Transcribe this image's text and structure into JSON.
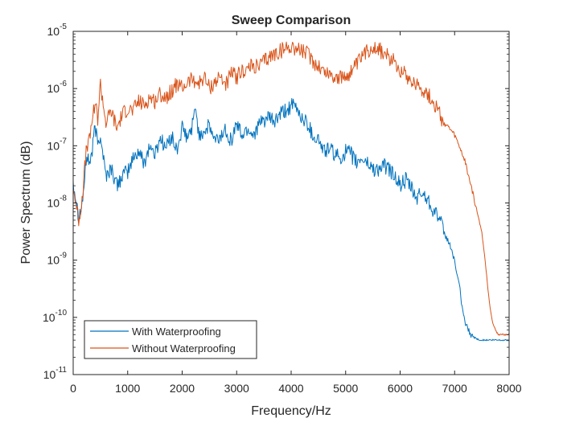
{
  "chart_data": {
    "type": "line",
    "title": "Sweep Comparison",
    "xlabel": "Frequency/Hz",
    "ylabel": "Power Spectrum (dB)",
    "xlim": [
      0,
      8000
    ],
    "ylim": [
      1e-11,
      1e-05
    ],
    "yscale": "log",
    "grid": false,
    "legend_position": "bottom-left",
    "x_ticks": [
      0,
      1000,
      2000,
      3000,
      4000,
      5000,
      6000,
      7000,
      8000
    ],
    "x_tick_labels": [
      "0",
      "1000",
      "2000",
      "3000",
      "4000",
      "5000",
      "6000",
      "7000",
      "8000"
    ],
    "y_ticks": [
      1e-11,
      1e-10,
      1e-09,
      1e-08,
      1e-07,
      1e-06,
      1e-05
    ],
    "y_tick_labels": [
      {
        "base": "10",
        "exp": "-11"
      },
      {
        "base": "10",
        "exp": "-10"
      },
      {
        "base": "10",
        "exp": "-9"
      },
      {
        "base": "10",
        "exp": "-8"
      },
      {
        "base": "10",
        "exp": "-7"
      },
      {
        "base": "10",
        "exp": "-6"
      },
      {
        "base": "10",
        "exp": "-5"
      }
    ],
    "series": [
      {
        "name": "With Waterproofing",
        "color": "#0072BD",
        "x": [
          0,
          50,
          100,
          150,
          200,
          250,
          300,
          350,
          400,
          450,
          500,
          600,
          700,
          800,
          900,
          1000,
          1100,
          1200,
          1300,
          1400,
          1500,
          1600,
          1700,
          1800,
          1900,
          2000,
          2100,
          2200,
          2250,
          2300,
          2400,
          2500,
          2600,
          2700,
          2800,
          2900,
          3000,
          3100,
          3200,
          3300,
          3400,
          3500,
          3600,
          3700,
          3800,
          3900,
          4000,
          4100,
          4200,
          4300,
          4400,
          4500,
          4600,
          4700,
          4800,
          4900,
          5000,
          5100,
          5200,
          5300,
          5400,
          5500,
          5600,
          5700,
          5800,
          5900,
          6000,
          6100,
          6200,
          6300,
          6400,
          6500,
          6600,
          6700,
          6800,
          6900,
          7000,
          7050,
          7100,
          7150,
          7200,
          7250,
          7300,
          7350,
          7400,
          7500,
          7600,
          7700,
          7800,
          7900,
          8000
        ],
        "values": [
          2.5e-08,
          1.2e-08,
          6e-09,
          8e-09,
          2e-08,
          7e-08,
          5e-08,
          8e-08,
          2.2e-07,
          1.1e-07,
          1.6e-07,
          3e-08,
          4e-08,
          2e-08,
          3e-08,
          3.5e-08,
          6e-08,
          8e-08,
          5e-08,
          1e-07,
          7e-08,
          1.4e-07,
          9e-08,
          1.5e-07,
          8e-08,
          2e-07,
          1.3e-07,
          2.5e-07,
          5e-07,
          1.6e-07,
          1.8e-07,
          2.2e-07,
          1.2e-07,
          1.4e-07,
          2e-07,
          1.2e-07,
          2.5e-07,
          1.5e-07,
          2e-07,
          1.6e-07,
          2.2e-07,
          2.8e-07,
          3e-07,
          2.6e-07,
          3.5e-07,
          4e-07,
          5e-07,
          4.5e-07,
          3e-07,
          2.5e-07,
          1.5e-07,
          1.3e-07,
          8e-08,
          9e-08,
          7e-08,
          6e-08,
          8e-08,
          7e-08,
          5e-08,
          6e-08,
          5e-08,
          4e-08,
          3.8e-08,
          4.5e-08,
          3.8e-08,
          3e-08,
          2e-08,
          2.5e-08,
          1.8e-08,
          1.2e-08,
          1.5e-08,
          1.2e-08,
          8e-09,
          6e-09,
          3e-09,
          2e-09,
          1e-09,
          5e-10,
          3e-10,
          1.2e-10,
          8e-11,
          6e-11,
          5e-11,
          4.5e-11,
          4.2e-11,
          4e-11,
          4e-11,
          4e-11,
          4e-11,
          4e-11,
          4e-11
        ]
      },
      {
        "name": "Without Waterproofing",
        "color": "#D95319",
        "x": [
          0,
          50,
          100,
          150,
          200,
          250,
          300,
          350,
          400,
          450,
          500,
          600,
          700,
          800,
          900,
          1000,
          1100,
          1200,
          1300,
          1400,
          1500,
          1600,
          1700,
          1800,
          1900,
          2000,
          2100,
          2200,
          2300,
          2400,
          2500,
          2600,
          2700,
          2800,
          2900,
          3000,
          3100,
          3200,
          3300,
          3400,
          3500,
          3600,
          3700,
          3800,
          3900,
          4000,
          4100,
          4200,
          4300,
          4400,
          4500,
          4600,
          4700,
          4800,
          4900,
          5000,
          5100,
          5200,
          5300,
          5400,
          5500,
          5600,
          5700,
          5800,
          5900,
          6000,
          6100,
          6200,
          6300,
          6400,
          6500,
          6600,
          6700,
          6800,
          6900,
          7000,
          7100,
          7200,
          7300,
          7400,
          7500,
          7550,
          7600,
          7650,
          7700,
          7750,
          7800,
          7900,
          8000
        ],
        "values": [
          1.8e-08,
          1e-08,
          5e-09,
          9e-09,
          3e-08,
          1e-07,
          1.2e-07,
          3e-07,
          6e-07,
          3e-07,
          1.2e-06,
          2.5e-07,
          4e-07,
          2e-07,
          3.5e-07,
          4.5e-07,
          4e-07,
          6e-07,
          5e-07,
          7e-07,
          6e-07,
          8e-07,
          7e-07,
          9e-07,
          1.2e-06,
          1e-06,
          1.3e-06,
          1.5e-06,
          1.2e-06,
          1.6e-06,
          1e-06,
          1.3e-06,
          1.6e-06,
          1.2e-06,
          1.8e-06,
          1.6e-06,
          2e-06,
          2.2e-06,
          2.5e-06,
          2.3e-06,
          3e-06,
          3.5e-06,
          4e-06,
          4.5e-06,
          5e-06,
          5.5e-06,
          5e-06,
          4.5e-06,
          4e-06,
          3e-06,
          2.5e-06,
          2e-06,
          1.8e-06,
          1.6e-06,
          1.5e-06,
          1.6e-06,
          2e-06,
          2.5e-06,
          3.5e-06,
          4.5e-06,
          5.5e-06,
          5e-06,
          4e-06,
          3.5e-06,
          3e-06,
          2.2e-06,
          1.8e-06,
          1.4e-06,
          1.2e-06,
          1e-06,
          8e-07,
          6e-07,
          4e-07,
          2.5e-07,
          2e-07,
          1.5e-07,
          9e-08,
          5e-08,
          2e-08,
          8e-09,
          3e-09,
          1.2e-09,
          4e-10,
          1.5e-10,
          8e-11,
          6e-11,
          5e-11,
          5e-11,
          5e-11
        ]
      }
    ]
  }
}
